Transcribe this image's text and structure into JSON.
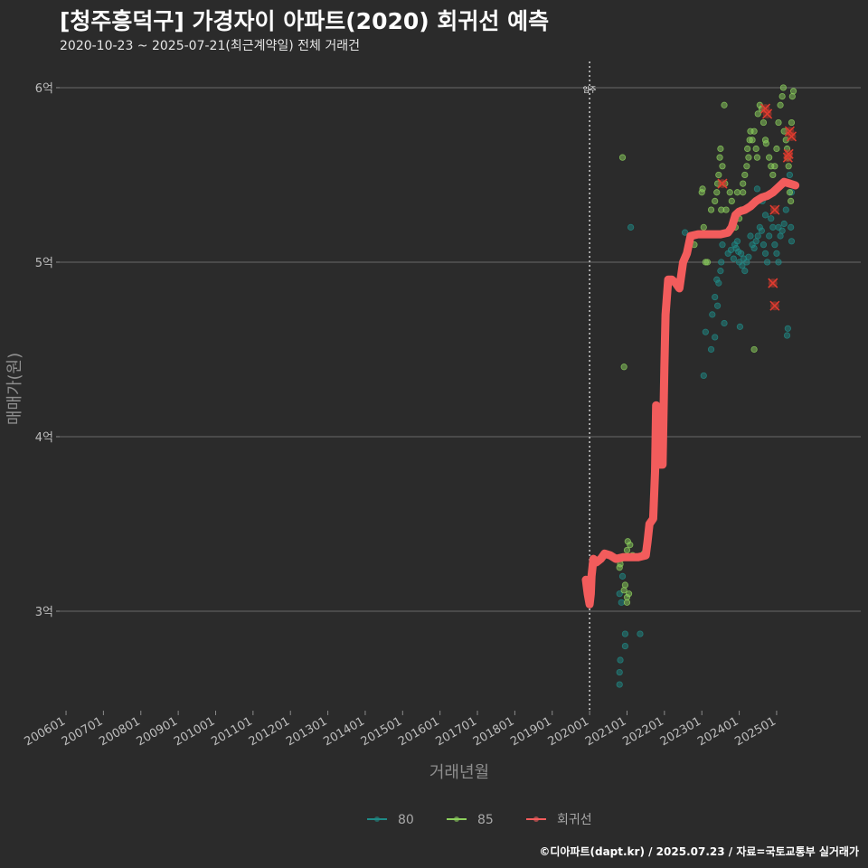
{
  "chart_data": {
    "type": "scatter",
    "title": "[청주흥덕구] 가경자이 아파트(2020) 회귀선 예측",
    "subtitle": "2020-10-23 ~ 2025-07-21(최근계약일) 전체 거래건",
    "xlabel": "거래년월",
    "ylabel": "매매가(원)",
    "caption": "©디아파트(dapt.kr) / 2025.07.23 / 자료=국토교통부 실거래가",
    "x_domain": [
      2005.83,
      2027.25
    ],
    "ylim": [
      2.43,
      6.15
    ],
    "y_ticks": [
      {
        "value": 3,
        "label": "3억"
      },
      {
        "value": 4,
        "label": "4억"
      },
      {
        "value": 5,
        "label": "5억"
      },
      {
        "value": 6,
        "label": "6억"
      }
    ],
    "x_ticks": [
      {
        "value": 2006.0,
        "label": "200601"
      },
      {
        "value": 2007.0,
        "label": "200701"
      },
      {
        "value": 2008.0,
        "label": "200801"
      },
      {
        "value": 2009.0,
        "label": "200901"
      },
      {
        "value": 2010.0,
        "label": "201001"
      },
      {
        "value": 2011.0,
        "label": "201101"
      },
      {
        "value": 2012.0,
        "label": "201201"
      },
      {
        "value": 2013.0,
        "label": "201301"
      },
      {
        "value": 2014.0,
        "label": "201401"
      },
      {
        "value": 2015.0,
        "label": "201501"
      },
      {
        "value": 2016.0,
        "label": "201601"
      },
      {
        "value": 2017.0,
        "label": "201701"
      },
      {
        "value": 2018.0,
        "label": "201801"
      },
      {
        "value": 2019.0,
        "label": "201901"
      },
      {
        "value": 2020.0,
        "label": "202001"
      },
      {
        "value": 2021.0,
        "label": "202101"
      },
      {
        "value": 2022.0,
        "label": "202201"
      },
      {
        "value": 2023.0,
        "label": "202301"
      },
      {
        "value": 2024.0,
        "label": "202401"
      },
      {
        "value": 2025.0,
        "label": "202501"
      }
    ],
    "vline": {
      "x": 2020.0,
      "label": "입주"
    },
    "legend": [
      {
        "name": "80",
        "color": "#1f8a86"
      },
      {
        "name": "85",
        "color": "#8ccf5d"
      },
      {
        "name": "회귀선",
        "color": "#f25c5c"
      }
    ],
    "series": [
      {
        "name": "80",
        "color": "#1f8a86",
        "points": [
          [
            2020.8,
            3.1
          ],
          [
            2020.85,
            3.05
          ],
          [
            2020.82,
            2.72
          ],
          [
            2020.8,
            2.65
          ],
          [
            2020.8,
            2.58
          ],
          [
            2020.95,
            2.8
          ],
          [
            2020.95,
            2.87
          ],
          [
            2020.88,
            3.2
          ],
          [
            2021.1,
            5.2
          ],
          [
            2021.35,
            2.87
          ],
          [
            2022.55,
            5.17
          ],
          [
            2023.05,
            4.35
          ],
          [
            2023.1,
            4.6
          ],
          [
            2023.28,
            4.7
          ],
          [
            2023.25,
            4.5
          ],
          [
            2023.35,
            4.8
          ],
          [
            2023.4,
            4.9
          ],
          [
            2023.45,
            4.88
          ],
          [
            2023.42,
            4.75
          ],
          [
            2023.5,
            4.95
          ],
          [
            2023.52,
            5.0
          ],
          [
            2023.55,
            5.1
          ],
          [
            2023.6,
            4.65
          ],
          [
            2023.7,
            5.05
          ],
          [
            2023.78,
            5.07
          ],
          [
            2023.85,
            5.02
          ],
          [
            2023.88,
            5.1
          ],
          [
            2023.92,
            5.08
          ],
          [
            2023.95,
            5.12
          ],
          [
            2024.0,
            5.0
          ],
          [
            2024.05,
            5.05
          ],
          [
            2024.08,
            4.98
          ],
          [
            2024.12,
            5.02
          ],
          [
            2024.15,
            4.95
          ],
          [
            2024.2,
            5.0
          ],
          [
            2024.25,
            5.03
          ],
          [
            2024.3,
            5.15
          ],
          [
            2024.35,
            5.1
          ],
          [
            2024.4,
            5.08
          ],
          [
            2024.45,
            5.12
          ],
          [
            2024.5,
            5.15
          ],
          [
            2024.55,
            5.2
          ],
          [
            2024.6,
            5.18
          ],
          [
            2024.65,
            5.1
          ],
          [
            2024.7,
            5.05
          ],
          [
            2024.75,
            5.0
          ],
          [
            2024.8,
            5.15
          ],
          [
            2024.85,
            5.25
          ],
          [
            2024.9,
            5.2
          ],
          [
            2024.95,
            5.1
          ],
          [
            2025.0,
            5.05
          ],
          [
            2025.05,
            5.2
          ],
          [
            2025.1,
            5.15
          ],
          [
            2025.15,
            5.18
          ],
          [
            2025.2,
            5.22
          ],
          [
            2025.25,
            5.3
          ],
          [
            2025.3,
            5.45
          ],
          [
            2025.35,
            5.5
          ],
          [
            2025.4,
            5.4
          ],
          [
            2025.05,
            5.0
          ],
          [
            2024.02,
            4.63
          ],
          [
            2025.28,
            4.58
          ],
          [
            2025.3,
            4.62
          ],
          [
            2025.38,
            5.2
          ],
          [
            2025.4,
            5.12
          ],
          [
            2023.98,
            5.06
          ],
          [
            2023.35,
            4.57
          ],
          [
            2024.7,
            5.27
          ],
          [
            2024.62,
            5.35
          ],
          [
            2024.48,
            5.42
          ]
        ]
      },
      {
        "name": "85",
        "color": "#8ccf5d",
        "points": [
          [
            2020.8,
            3.25
          ],
          [
            2020.82,
            3.27
          ],
          [
            2020.85,
            3.3
          ],
          [
            2020.92,
            3.12
          ],
          [
            2020.95,
            3.15
          ],
          [
            2021.0,
            3.05
          ],
          [
            2021.0,
            3.08
          ],
          [
            2021.05,
            3.1
          ],
          [
            2021.0,
            3.35
          ],
          [
            2021.02,
            3.4
          ],
          [
            2021.08,
            3.38
          ],
          [
            2021.15,
            3.32
          ],
          [
            2021.45,
            3.33
          ],
          [
            2020.88,
            5.6
          ],
          [
            2020.92,
            4.4
          ],
          [
            2022.8,
            5.1
          ],
          [
            2023.0,
            5.4
          ],
          [
            2023.02,
            5.42
          ],
          [
            2023.05,
            5.2
          ],
          [
            2023.1,
            5.0
          ],
          [
            2023.15,
            5.0
          ],
          [
            2023.25,
            5.3
          ],
          [
            2023.35,
            5.35
          ],
          [
            2023.4,
            5.4
          ],
          [
            2023.42,
            5.45
          ],
          [
            2023.45,
            5.5
          ],
          [
            2023.48,
            5.6
          ],
          [
            2023.5,
            5.65
          ],
          [
            2023.52,
            5.3
          ],
          [
            2023.55,
            5.55
          ],
          [
            2023.6,
            5.9
          ],
          [
            2023.62,
            5.45
          ],
          [
            2023.65,
            5.3
          ],
          [
            2023.75,
            5.4
          ],
          [
            2023.8,
            5.35
          ],
          [
            2023.9,
            5.2
          ],
          [
            2024.0,
            5.25
          ],
          [
            2024.05,
            5.3
          ],
          [
            2024.1,
            5.4
          ],
          [
            2024.15,
            5.5
          ],
          [
            2024.2,
            5.55
          ],
          [
            2024.22,
            5.65
          ],
          [
            2024.25,
            5.6
          ],
          [
            2024.28,
            5.7
          ],
          [
            2024.3,
            5.75
          ],
          [
            2024.35,
            5.7
          ],
          [
            2024.4,
            5.75
          ],
          [
            2024.45,
            5.65
          ],
          [
            2024.48,
            5.6
          ],
          [
            2024.5,
            5.85
          ],
          [
            2024.55,
            5.9
          ],
          [
            2024.6,
            5.88
          ],
          [
            2024.65,
            5.8
          ],
          [
            2024.7,
            5.7
          ],
          [
            2024.72,
            5.68
          ],
          [
            2024.8,
            5.6
          ],
          [
            2024.85,
            5.55
          ],
          [
            2024.9,
            5.5
          ],
          [
            2024.95,
            5.55
          ],
          [
            2025.0,
            5.65
          ],
          [
            2025.05,
            5.8
          ],
          [
            2025.1,
            5.9
          ],
          [
            2025.15,
            5.95
          ],
          [
            2025.18,
            6.0
          ],
          [
            2025.2,
            5.75
          ],
          [
            2025.25,
            5.7
          ],
          [
            2025.28,
            5.65
          ],
          [
            2025.3,
            5.6
          ],
          [
            2025.32,
            5.55
          ],
          [
            2025.35,
            5.4
          ],
          [
            2025.38,
            5.35
          ],
          [
            2025.4,
            5.8
          ],
          [
            2025.42,
            5.95
          ],
          [
            2025.45,
            5.98
          ],
          [
            2024.4,
            4.5
          ],
          [
            2024.1,
            5.45
          ],
          [
            2023.95,
            5.4
          ]
        ]
      }
    ],
    "highlight_points": [
      [
        2023.55,
        5.45
      ],
      [
        2024.7,
        5.88
      ],
      [
        2024.75,
        5.85
      ],
      [
        2025.35,
        5.75
      ],
      [
        2025.4,
        5.72
      ],
      [
        2025.3,
        5.6
      ],
      [
        2025.32,
        5.62
      ],
      [
        2024.95,
        5.3
      ],
      [
        2024.9,
        4.88
      ],
      [
        2024.95,
        4.75
      ]
    ],
    "regression": [
      [
        2019.9,
        3.18
      ],
      [
        2019.95,
        3.1
      ],
      [
        2020.0,
        3.04
      ],
      [
        2020.03,
        3.1
      ],
      [
        2020.05,
        3.2
      ],
      [
        2020.1,
        3.3
      ],
      [
        2020.18,
        3.28
      ],
      [
        2020.3,
        3.3
      ],
      [
        2020.4,
        3.33
      ],
      [
        2020.55,
        3.32
      ],
      [
        2020.7,
        3.3
      ],
      [
        2020.9,
        3.31
      ],
      [
        2021.1,
        3.31
      ],
      [
        2021.3,
        3.31
      ],
      [
        2021.5,
        3.32
      ],
      [
        2021.55,
        3.4
      ],
      [
        2021.6,
        3.5
      ],
      [
        2021.7,
        3.53
      ],
      [
        2021.75,
        3.8
      ],
      [
        2021.78,
        4.18
      ],
      [
        2021.8,
        3.9
      ],
      [
        2021.82,
        4.1
      ],
      [
        2021.85,
        3.84
      ],
      [
        2021.95,
        3.84
      ],
      [
        2022.0,
        4.4
      ],
      [
        2022.03,
        4.7
      ],
      [
        2022.1,
        4.9
      ],
      [
        2022.2,
        4.9
      ],
      [
        2022.3,
        4.88
      ],
      [
        2022.4,
        4.85
      ],
      [
        2022.5,
        5.0
      ],
      [
        2022.6,
        5.05
      ],
      [
        2022.7,
        5.15
      ],
      [
        2022.9,
        5.16
      ],
      [
        2023.1,
        5.16
      ],
      [
        2023.3,
        5.16
      ],
      [
        2023.5,
        5.16
      ],
      [
        2023.7,
        5.17
      ],
      [
        2023.8,
        5.2
      ],
      [
        2023.9,
        5.27
      ],
      [
        2024.0,
        5.29
      ],
      [
        2024.15,
        5.3
      ],
      [
        2024.3,
        5.32
      ],
      [
        2024.45,
        5.35
      ],
      [
        2024.6,
        5.37
      ],
      [
        2024.75,
        5.38
      ],
      [
        2024.9,
        5.4
      ],
      [
        2025.05,
        5.43
      ],
      [
        2025.2,
        5.46
      ],
      [
        2025.35,
        5.45
      ],
      [
        2025.5,
        5.44
      ]
    ]
  }
}
